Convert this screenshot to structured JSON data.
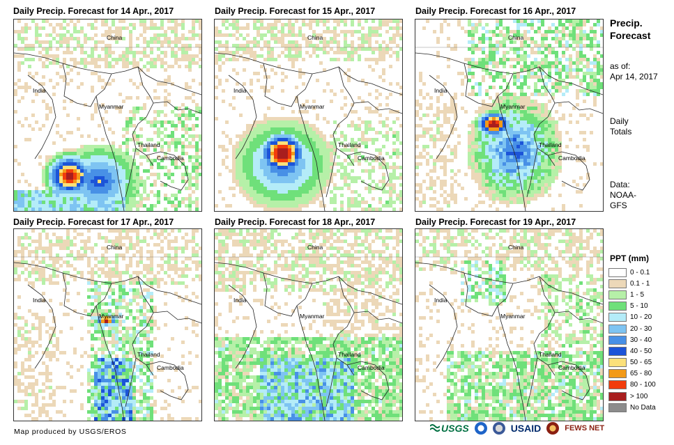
{
  "panels": [
    {
      "title": "Daily Precip. Forecast for 14 Apr., 2017",
      "labels": {
        "china": "China",
        "india": "India",
        "myanmar": "Myanmar",
        "thailand": "Thailand",
        "cambodia": "Cambodia"
      }
    },
    {
      "title": "Daily Precip. Forecast for 15 Apr., 2017",
      "labels": {
        "china": "China",
        "india": "India",
        "myanmar": "Myanmar",
        "thailand": "Thailand",
        "cambodia": "Cambodia"
      }
    },
    {
      "title": "Daily Precip. Forecast for 16 Apr., 2017",
      "labels": {
        "china": "China",
        "india": "India",
        "myanmar": "Myanmar",
        "thailand": "Thailand",
        "cambodia": "Cambodia"
      }
    },
    {
      "title": "Daily Precip. Forecast for 17 Apr., 2017",
      "labels": {
        "china": "China",
        "india": "India",
        "myanmar": "Myanmar",
        "thailand": "Thailand",
        "cambodia": "Cambodia"
      }
    },
    {
      "title": "Daily Precip. Forecast for 18 Apr., 2017",
      "labels": {
        "china": "China",
        "india": "India",
        "myanmar": "Myanmar",
        "thailand": "Thailand",
        "cambodia": "Cambodia"
      }
    },
    {
      "title": "Daily Precip. Forecast for 19 Apr., 2017",
      "labels": {
        "china": "China",
        "india": "India",
        "myanmar": "Myanmar",
        "thailand": "Thailand",
        "cambodia": "Cambodia"
      }
    }
  ],
  "sidebar": {
    "title_line1": "Precip.",
    "title_line2": "Forecast",
    "asof_line1": "as of:",
    "asof_line2": "Apr 14, 2017",
    "daily_line1": "Daily",
    "daily_line2": "Totals",
    "data_line1": "Data:",
    "data_line2": "NOAA-",
    "data_line3": "GFS"
  },
  "legend": {
    "title": "PPT (mm)",
    "items": [
      {
        "label": "0 - 0.1",
        "color": "#ffffff"
      },
      {
        "label": "0.1 - 1",
        "color": "#ecd8b8"
      },
      {
        "label": "1 - 5",
        "color": "#b6f0a8"
      },
      {
        "label": "5 - 10",
        "color": "#6fe07a"
      },
      {
        "label": "10 - 20",
        "color": "#b4ecf8"
      },
      {
        "label": "20 - 30",
        "color": "#7ec4f2"
      },
      {
        "label": "30 - 40",
        "color": "#4890e6"
      },
      {
        "label": "40 - 50",
        "color": "#1c54d8"
      },
      {
        "label": "50 - 65",
        "color": "#fbe07a"
      },
      {
        "label": "65 - 80",
        "color": "#f39a18"
      },
      {
        "label": "80 - 100",
        "color": "#f23c0c"
      },
      {
        "label": "> 100",
        "color": "#a81e1e"
      },
      {
        "label": "No Data",
        "color": "#8c8c8c"
      }
    ]
  },
  "footer": {
    "credit": "Map produced by USGS/EROS",
    "logos": {
      "usgs": "USGS",
      "usaid": "USAID",
      "fews": "FEWS NET"
    }
  }
}
